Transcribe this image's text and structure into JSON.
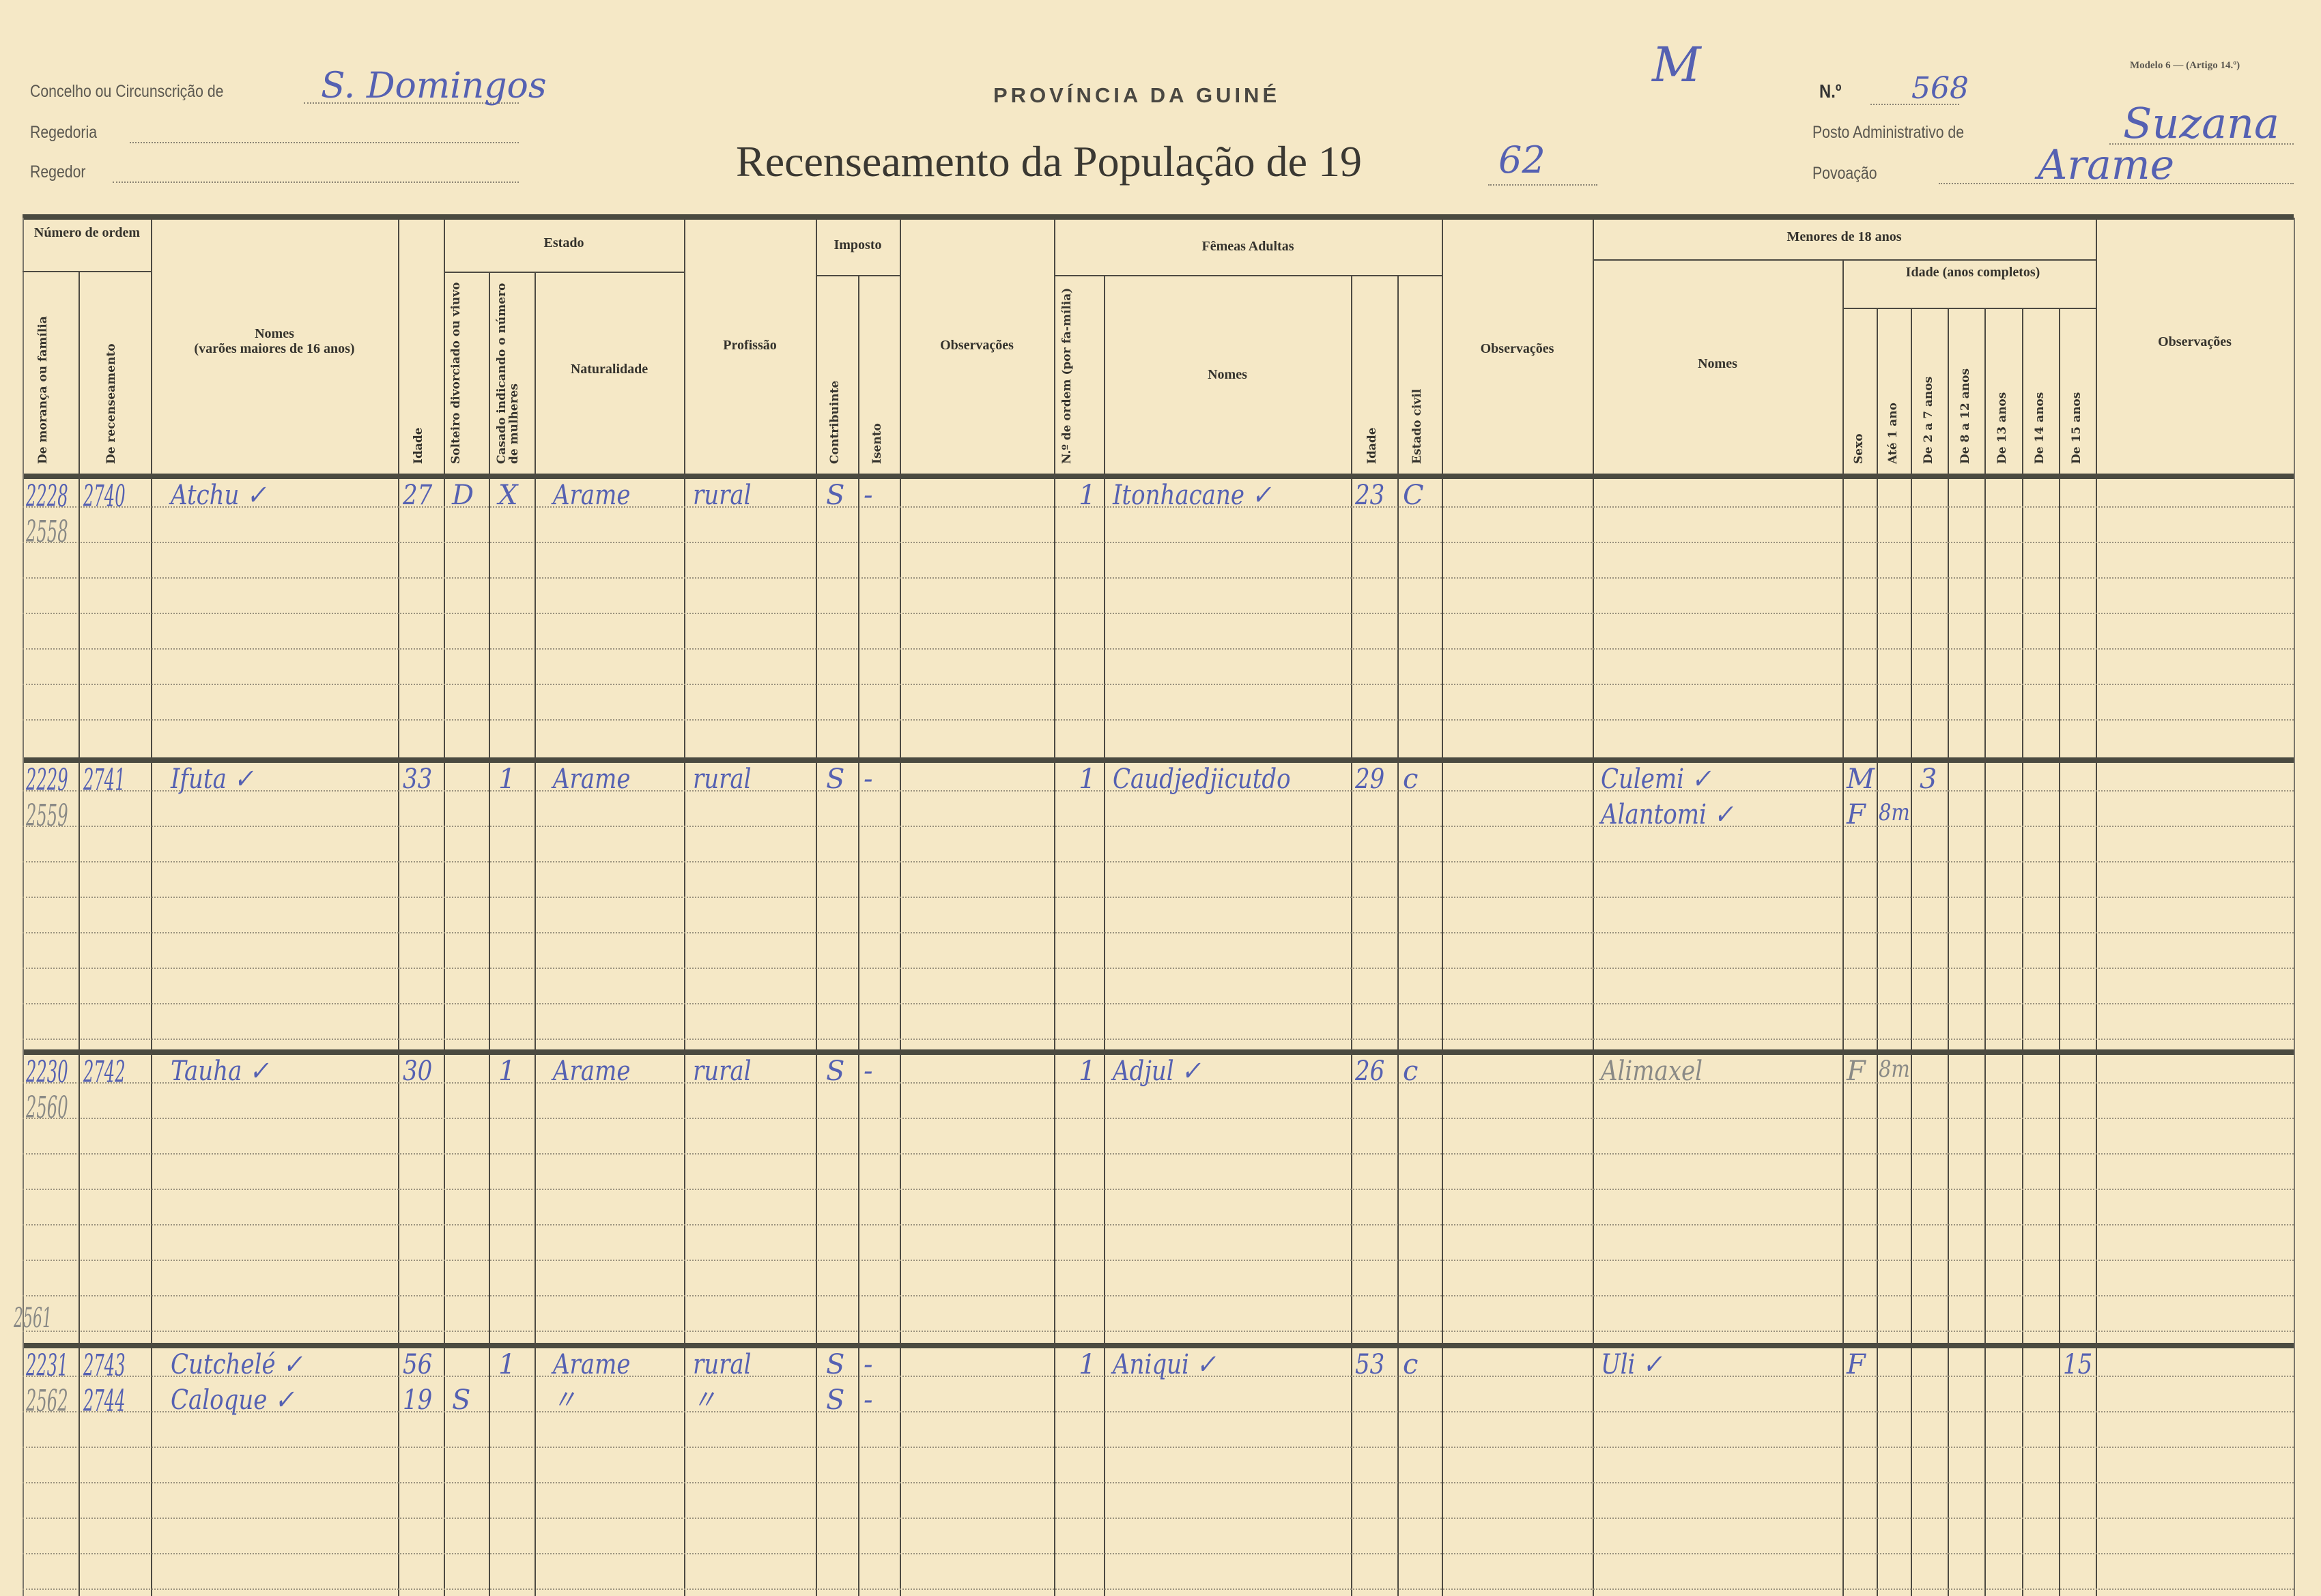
{
  "form": {
    "model": "Modelo 6 — (Artigo 14.º)",
    "province": "PROVÍNCIA DA GUINÉ",
    "title": "Recenseamento da População de 19",
    "year": "62",
    "margin_mark": "M",
    "concelho_label": "Concelho ou Circunscrição de",
    "concelho_value": "S. Domingos",
    "regedoria_label": "Regedoria",
    "regedor_label": "Regedor",
    "number_label": "N.º",
    "number_value": "568",
    "posto_label": "Posto Administrativo de",
    "posto_value": "Suzana",
    "povoacao_label": "Povoação",
    "povoacao_value": "Arame"
  },
  "columns": {
    "numero_ordem": "Número de ordem",
    "moranca": "De morança ou família",
    "recenseamento": "De recenseamento",
    "nomes_title": "Nomes",
    "nomes_sub": "(varões maiores de 16 anos)",
    "idade": "Idade",
    "estado": "Estado",
    "solteiro": "Solteiro divorciado ou viuvo",
    "casado": "Casado indicando o número de mulheres",
    "naturalidade": "Naturalidade",
    "profissao": "Profissão",
    "imposto": "Imposto",
    "contribuinte": "Contribuinte",
    "isento": "Isento",
    "observacoes1": "Observações",
    "femeas": "Fêmeas Adultas",
    "f_ordem": "N.º de ordem (por fa-mília)",
    "f_nomes": "Nomes",
    "f_idade": "Idade",
    "f_estado": "Estado civil",
    "observacoes2": "Observações",
    "menores": "Menores de 18 anos",
    "m_nomes": "Nomes",
    "m_idade": "Idade (anos completos)",
    "m_sexo": "Sexo",
    "m_ate1": "Até 1 ano",
    "m_2a7": "De 2 a 7 anos",
    "m_8a12": "De 8 a 12 anos",
    "m_13": "De 13 anos",
    "m_14": "De 14 anos",
    "m_15": "De 15 anos",
    "observacoes3": "Observações"
  },
  "records": [
    {
      "lines": [
        {
          "moranca": "2228",
          "recenseamento": "2740",
          "nome": "Atchu ✓",
          "idade": "27",
          "solteiro": "D",
          "casado": "X",
          "naturalidade": "Arame",
          "profissao": "rural",
          "contribuinte": "S",
          "isento": "-",
          "f_ordem": "1",
          "f_nome": "Itonhacane ✓",
          "f_idade": "23",
          "f_estado": "C"
        },
        {
          "moranca_pencil": "2558"
        }
      ]
    },
    {
      "lines": [
        {
          "moranca": "2229",
          "recenseamento": "2741",
          "nome": "Ifuta ✓",
          "idade": "33",
          "casado": "1",
          "naturalidade": "Arame",
          "profissao": "rural",
          "contribuinte": "S",
          "isento": "-",
          "f_ordem": "1",
          "f_nome": "Caudjedjicutdo",
          "f_idade": "29",
          "f_estado": "c",
          "m_nome": "Culemi ✓",
          "m_sexo": "M",
          "m_2a7": "3"
        },
        {
          "moranca_pencil": "2559",
          "m_nome": "Alantomi ✓",
          "m_sexo": "F",
          "m_ate1": "8m"
        }
      ]
    },
    {
      "lines": [
        {
          "moranca": "2230",
          "recenseamento": "2742",
          "nome": "Tauha ✓",
          "idade": "30",
          "casado": "1",
          "naturalidade": "Arame",
          "profissao": "rural",
          "contribuinte": "S",
          "isento": "-",
          "f_ordem": "1",
          "f_nome": "Adjul ✓",
          "f_idade": "26",
          "f_estado": "c",
          "m_nome_pencil": "Alimaxel",
          "m_sexo_pencil": "F",
          "m_ate1_pencil": "8m"
        },
        {
          "moranca_pencil": "2560"
        }
      ]
    },
    {
      "above": "2561",
      "lines": [
        {
          "moranca": "2231",
          "recenseamento": "2743",
          "nome": "Cutchelé ✓",
          "idade": "56",
          "casado": "1",
          "naturalidade": "Arame",
          "profissao": "rural",
          "contribuinte": "S",
          "isento": "-",
          "f_ordem": "1",
          "f_nome": "Aniqui ✓",
          "f_idade": "53",
          "f_estado": "c",
          "m_nome": "Uli ✓",
          "m_sexo": "F",
          "m_15": "15"
        },
        {
          "moranca_pencil": "2562",
          "recenseamento": "2744",
          "nome": "Caloque ✓",
          "idade": "19",
          "solteiro": "S",
          "naturalidade": "〃",
          "profissao": "〃",
          "contribuinte": "S",
          "isento": "-"
        }
      ]
    }
  ]
}
